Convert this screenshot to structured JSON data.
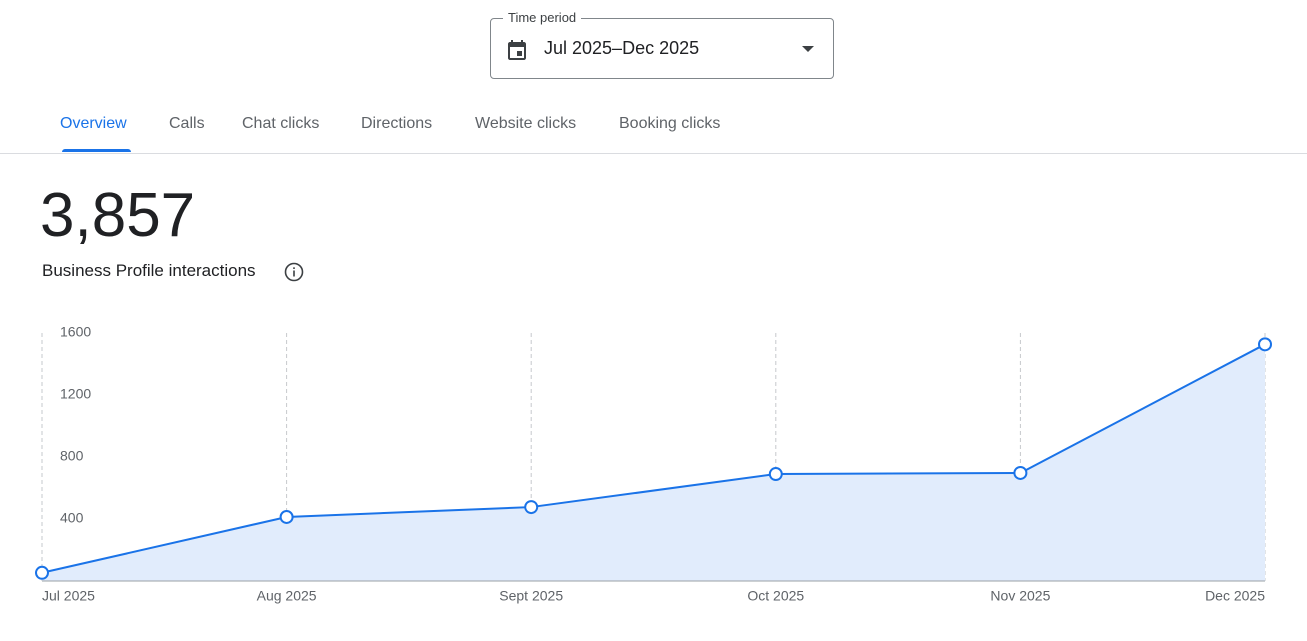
{
  "time_period": {
    "label": "Time period",
    "value": "Jul 2025–Dec 2025"
  },
  "tabs": [
    "Overview",
    "Calls",
    "Chat clicks",
    "Directions",
    "Website clicks",
    "Booking clicks"
  ],
  "summary": {
    "total": "3,857",
    "label": "Business Profile interactions"
  },
  "chart_data": {
    "type": "area",
    "categories": [
      "Jul 2025",
      "Aug 2025",
      "Sept 2025",
      "Oct 2025",
      "Nov 2025",
      "Dec 2025"
    ],
    "values": [
      53,
      413,
      477,
      690,
      697,
      1527
    ],
    "color": "#1a73e8",
    "fill_color": "#e1ecfc",
    "ylim": [
      0,
      1600
    ],
    "yticks": [
      400,
      800,
      1200,
      1600
    ],
    "grid": "x"
  }
}
